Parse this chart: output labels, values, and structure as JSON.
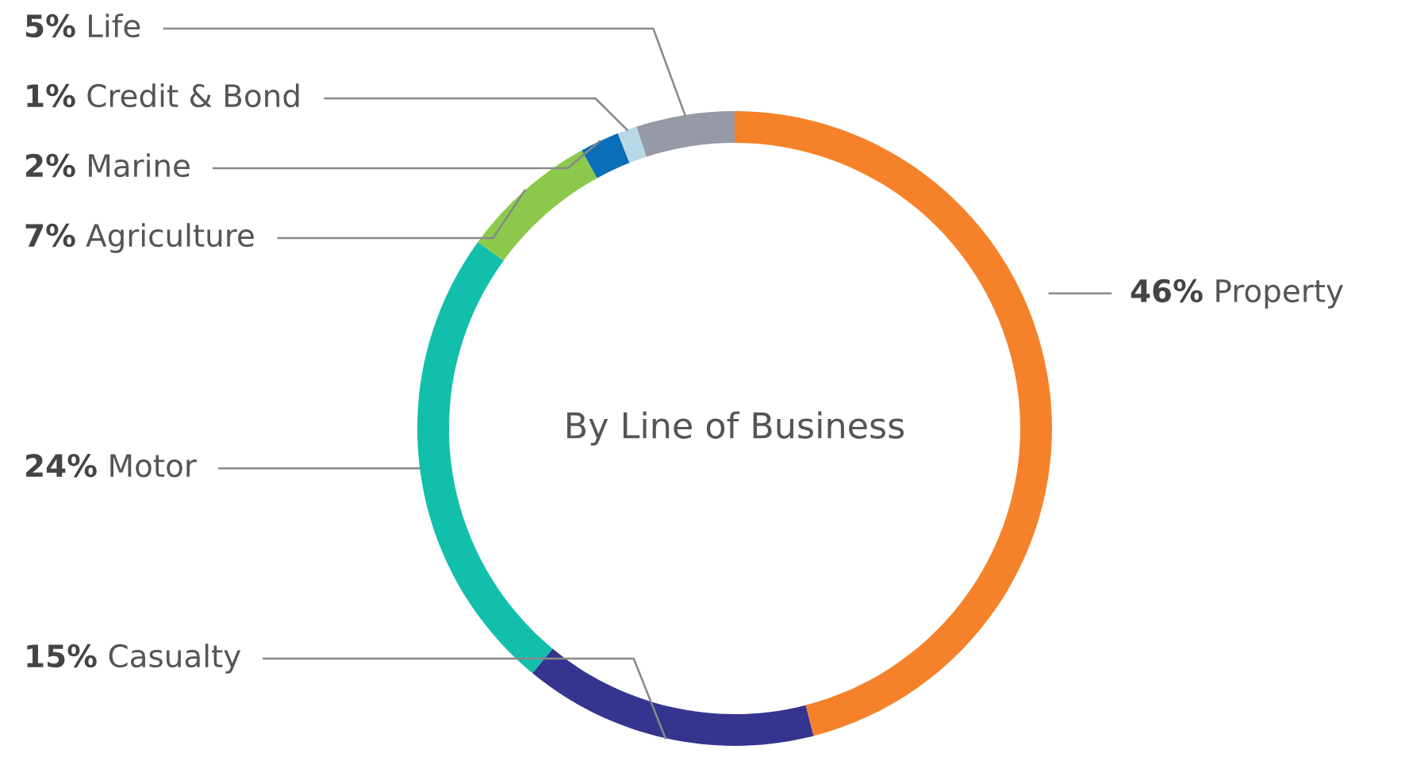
{
  "chart_data": {
    "type": "donut",
    "title": "By Line of Business",
    "categories": [
      "Property",
      "Casualty",
      "Motor",
      "Agriculture",
      "Marine",
      "Credit & Bond",
      "Life"
    ],
    "values": [
      46,
      15,
      24,
      7,
      2,
      1,
      5
    ],
    "value_labels": [
      "46%",
      "15%",
      "24%",
      "7%",
      "2%",
      "1%",
      "5%"
    ],
    "colors": [
      "#f5822a",
      "#35358f",
      "#12bfab",
      "#8cc94b",
      "#0a6fb8",
      "#b8d8e8",
      "#9699a6"
    ]
  }
}
